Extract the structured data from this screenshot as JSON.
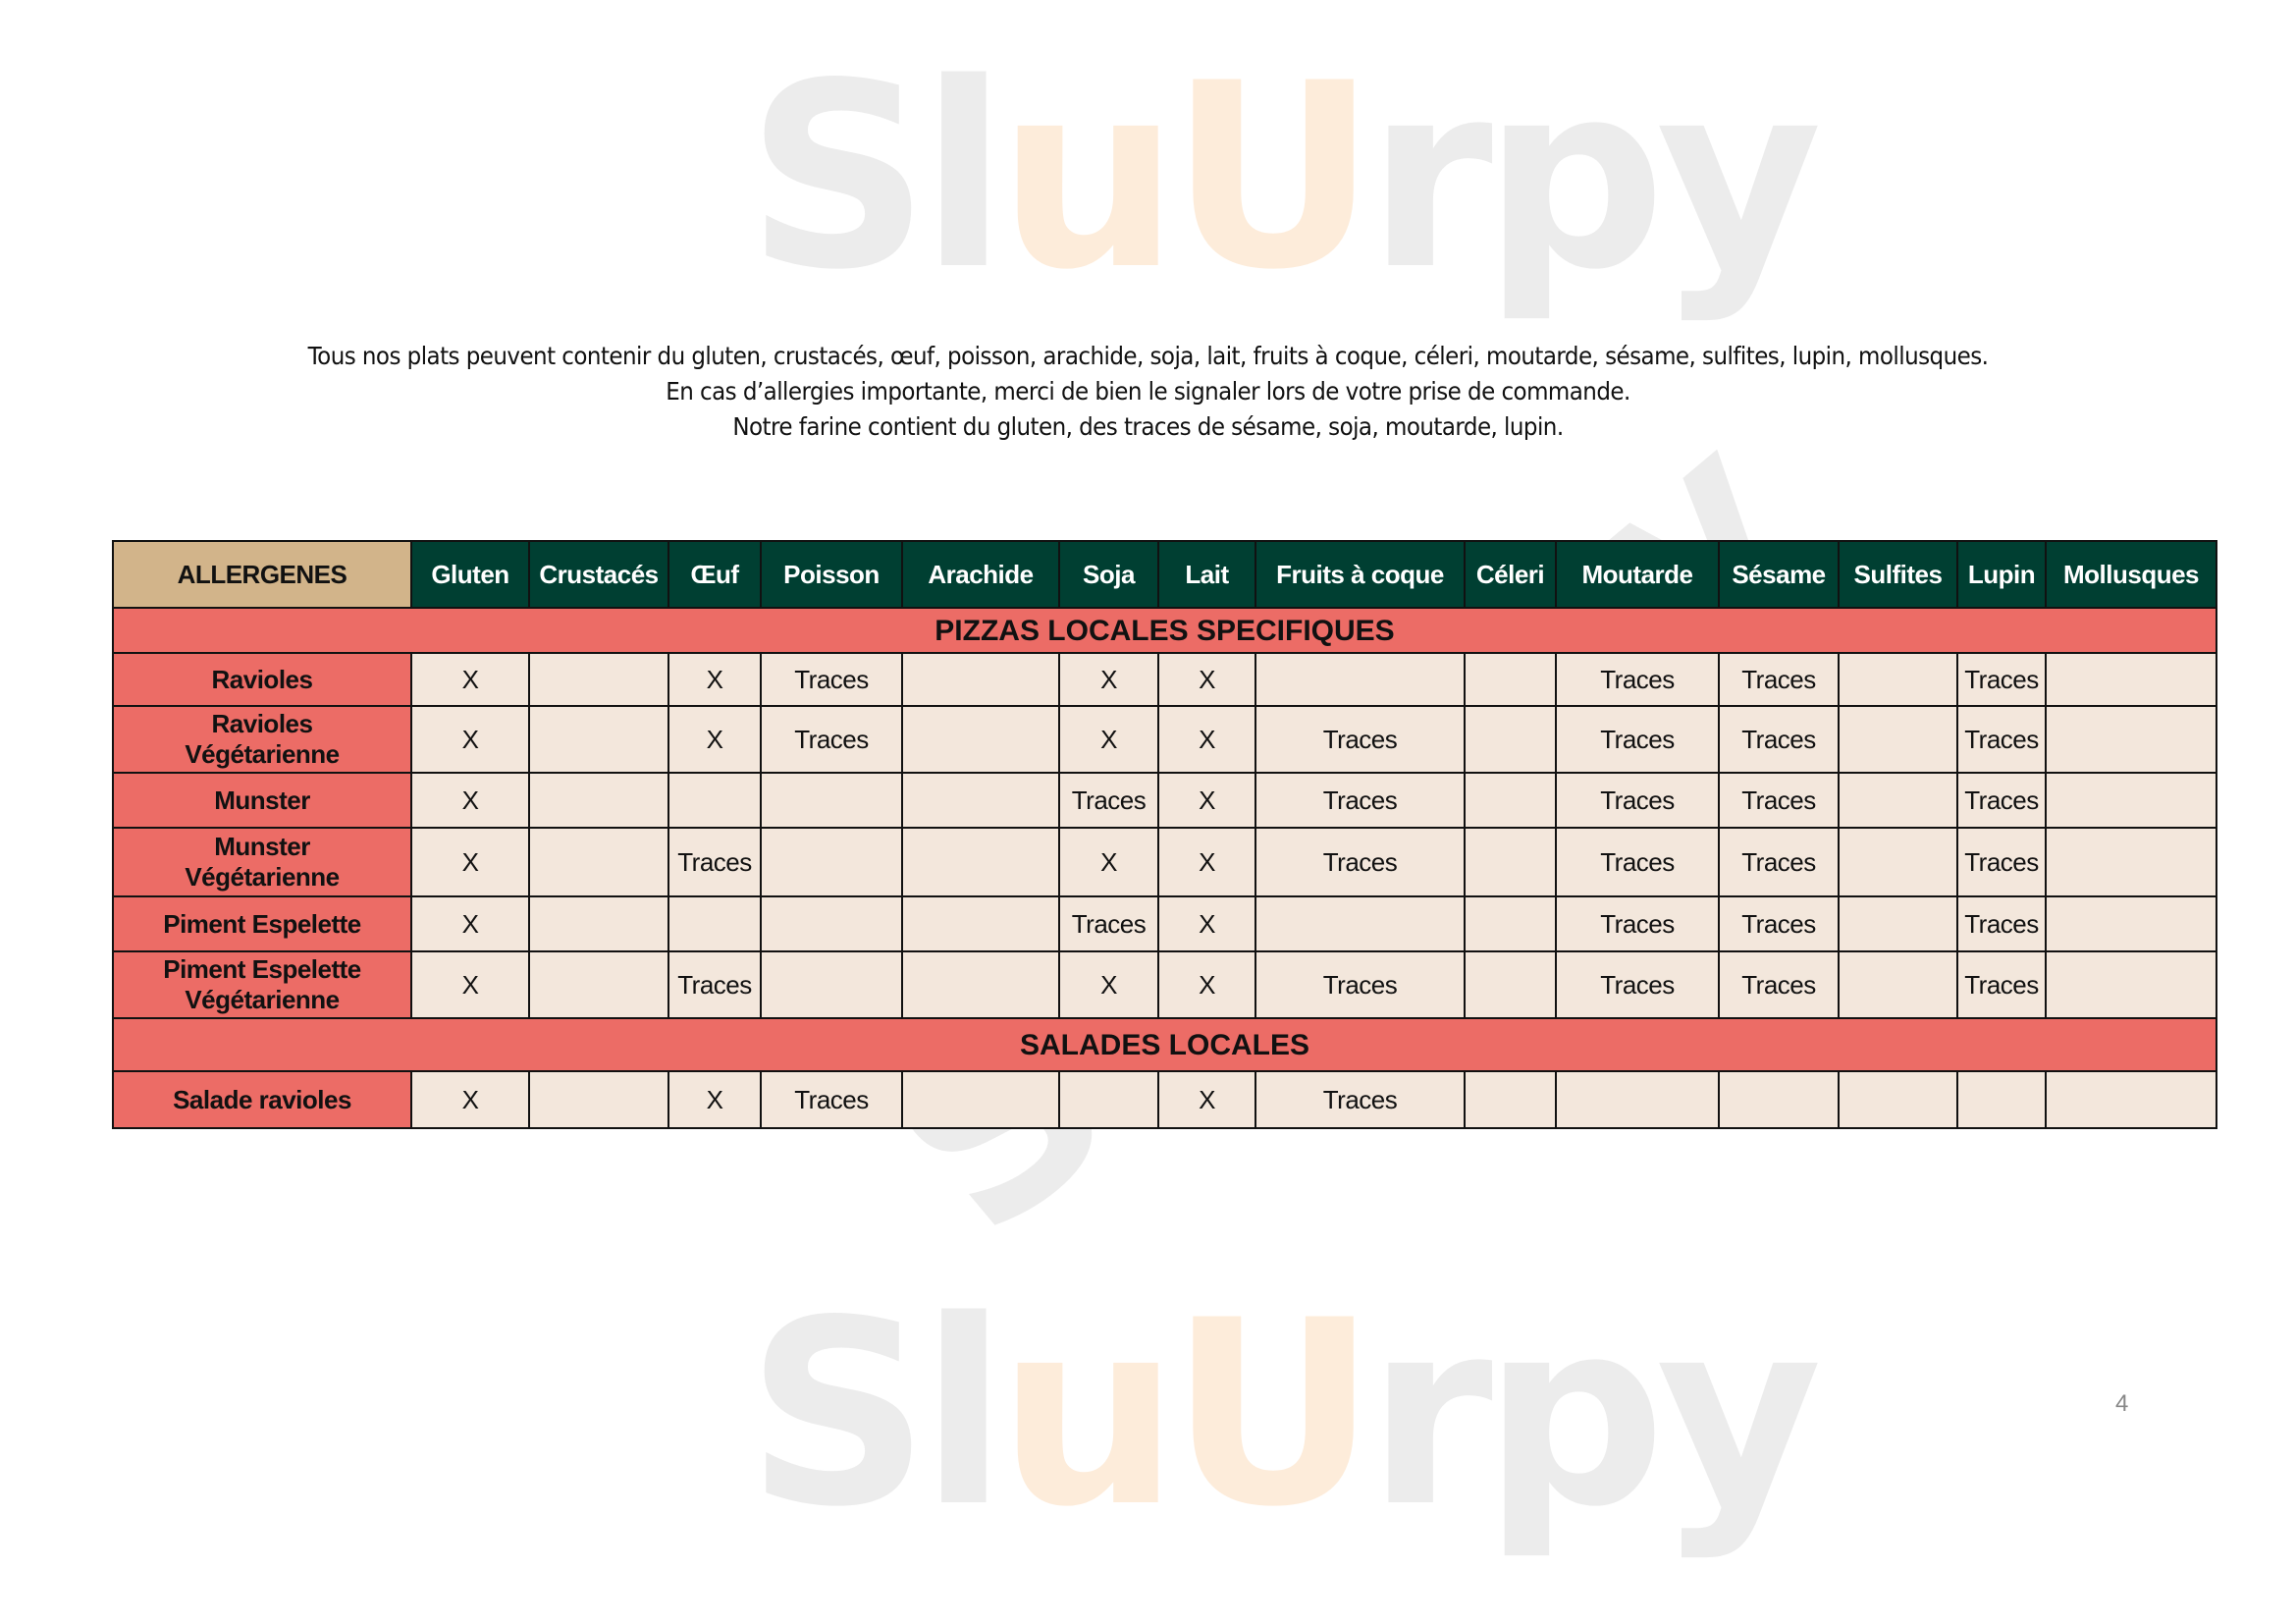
{
  "watermark": "Slurpy",
  "notice": [
    "Tous nos plats peuvent contenir du gluten, crustacés, œuf, poisson, arachide, soja, lait, fruits à coque, céleri, moutarde, sésame, sulfites, lupin, mollusques.",
    "En cas d’allergies importante, merci de bien le signaler lors de votre prise de commande.",
    "Notre farine contient du gluten, des traces de sésame, soja, moutarde, lupin."
  ],
  "table": {
    "corner": "ALLERGENES",
    "columns": [
      "Gluten",
      "Crustacés",
      "Œuf",
      "Poisson",
      "Arachide",
      "Soja",
      "Lait",
      "Fruits à coque",
      "Céleri",
      "Moutarde",
      "Sésame",
      "Sulfites",
      "Lupin",
      "Mollusques"
    ],
    "sections": [
      {
        "title": "PIZZAS LOCALES SPECIFIQUES",
        "rows": [
          {
            "name": [
              "Ravioles"
            ],
            "cells": [
              "X",
              "",
              "X",
              "Traces",
              "",
              "X",
              "X",
              "",
              "",
              "Traces",
              "Traces",
              "",
              "Traces",
              ""
            ]
          },
          {
            "name": [
              "Ravioles",
              "Végétarienne"
            ],
            "cells": [
              "X",
              "",
              "X",
              "Traces",
              "",
              "X",
              "X",
              "Traces",
              "",
              "Traces",
              "Traces",
              "",
              "Traces",
              ""
            ]
          },
          {
            "name": [
              "Munster"
            ],
            "cells": [
              "X",
              "",
              "",
              "",
              "",
              "Traces",
              "X",
              "Traces",
              "",
              "Traces",
              "Traces",
              "",
              "Traces",
              ""
            ]
          },
          {
            "name": [
              "Munster",
              "Végétarienne"
            ],
            "cells": [
              "X",
              "",
              "Traces",
              "",
              "",
              "X",
              "X",
              "Traces",
              "",
              "Traces",
              "Traces",
              "",
              "Traces",
              ""
            ]
          },
          {
            "name": [
              "Piment Espelette"
            ],
            "cells": [
              "X",
              "",
              "",
              "",
              "",
              "Traces",
              "X",
              "",
              "",
              "Traces",
              "Traces",
              "",
              "Traces",
              ""
            ]
          },
          {
            "name": [
              "Piment Espelette",
              "Végétarienne"
            ],
            "cells": [
              "X",
              "",
              "Traces",
              "",
              "",
              "X",
              "X",
              "Traces",
              "",
              "Traces",
              "Traces",
              "",
              "Traces",
              ""
            ]
          }
        ]
      },
      {
        "title": "SALADES LOCALES",
        "rows": [
          {
            "name": [
              "Salade ravioles"
            ],
            "cells": [
              "X",
              "",
              "X",
              "Traces",
              "",
              "",
              "X",
              "Traces",
              "",
              "",
              "",
              "",
              "",
              ""
            ]
          }
        ]
      }
    ]
  },
  "page_number": "4"
}
